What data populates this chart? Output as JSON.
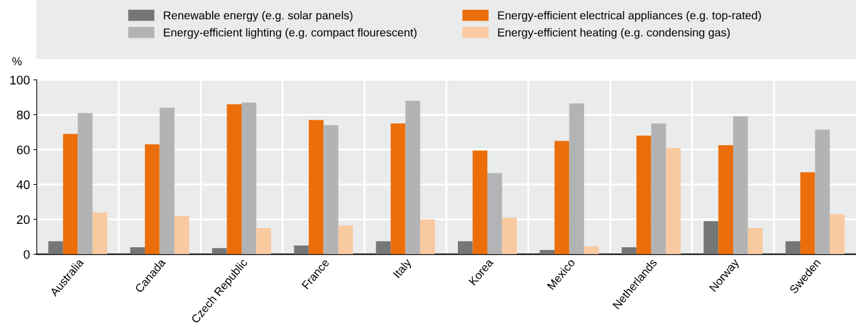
{
  "chart_data": {
    "type": "bar",
    "ylabel": "%",
    "categories": [
      "Australia",
      "Canada",
      "Czech Republic",
      "France",
      "Italy",
      "Korea",
      "Mexico",
      "Netherlands",
      "Norway",
      "Sweden"
    ],
    "series": [
      {
        "name": "Renewable energy (e.g. solar panels)",
        "color": "#757676",
        "values": [
          7.5,
          4,
          3.5,
          5,
          7.5,
          7.5,
          2.5,
          4,
          19,
          7.5
        ]
      },
      {
        "name": "Energy-efficient electrical appliances (e.g. top-rated)",
        "color": "#eb6e0a",
        "values": [
          69,
          63,
          86,
          77,
          75,
          59.5,
          65,
          68,
          62.5,
          47
        ]
      },
      {
        "name": "Energy-efficient lighting (e.g. compact flourescent)",
        "color": "#b2b3b4",
        "values": [
          81,
          84,
          87,
          74,
          88,
          46.5,
          86.5,
          75,
          79,
          71.5
        ]
      },
      {
        "name": "Energy-efficient heating (e.g. condensing gas)",
        "color": "#f9c99f",
        "values": [
          24,
          22,
          15,
          16.5,
          20,
          21,
          4.5,
          61,
          15,
          23
        ]
      }
    ],
    "ylim": [
      0,
      100
    ],
    "yticks": [
      0,
      20,
      40,
      60,
      80,
      100
    ],
    "grid": true,
    "legend": "top"
  }
}
